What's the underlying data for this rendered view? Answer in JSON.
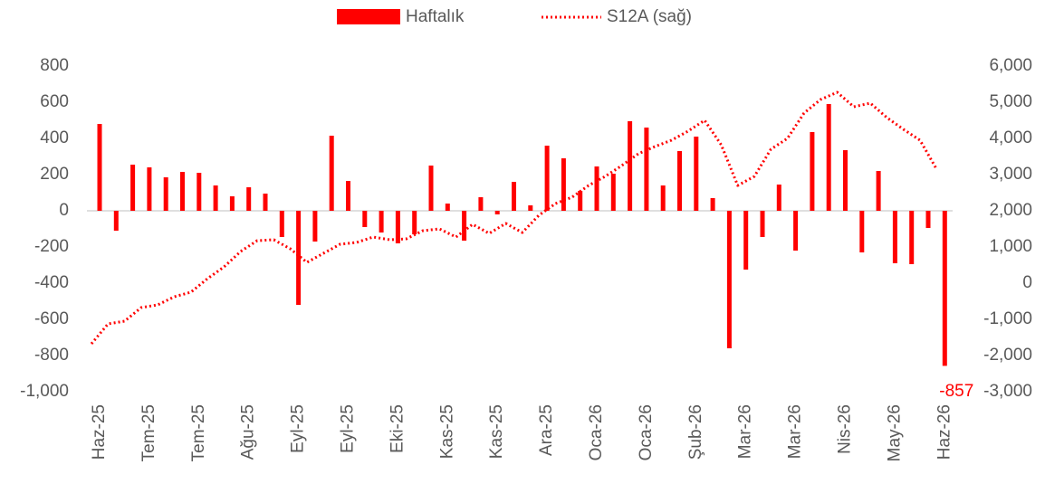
{
  "chart_data": {
    "type": "bar-line",
    "categories": [
      "Haz-25",
      null,
      null,
      "Tem-25",
      null,
      null,
      "Tem-25",
      null,
      null,
      "Ağu-25",
      null,
      null,
      "Eyl-25",
      null,
      null,
      "Eyl-25",
      null,
      null,
      "Eki-25",
      null,
      null,
      "Kas-25",
      null,
      null,
      "Kas-25",
      null,
      null,
      "Ara-25",
      null,
      null,
      "Oca-26",
      null,
      null,
      "Oca-26",
      null,
      null,
      "Şub-26",
      null,
      null,
      "Mar-26",
      null,
      null,
      "Mar-26",
      null,
      null,
      "Nis-26",
      null,
      null,
      "May-26",
      null,
      null,
      "Haz-26"
    ],
    "series": [
      {
        "name": "Haftalık",
        "color": "#ff0000",
        "kind": "bar",
        "values": [
          480,
          -110,
          255,
          240,
          185,
          215,
          210,
          140,
          80,
          130,
          95,
          -145,
          -520,
          -170,
          415,
          165,
          -90,
          -120,
          -180,
          -130,
          250,
          40,
          -165,
          75,
          -20,
          160,
          30,
          360,
          290,
          110,
          245,
          205,
          495,
          460,
          140,
          330,
          410,
          70,
          -760,
          -325,
          -145,
          145,
          -220,
          435,
          590,
          335,
          -230,
          220,
          -290,
          -295,
          -95,
          -857
        ]
      },
      {
        "name": "S12A (sağ)",
        "color": "#ff0000",
        "kind": "line",
        "axis": "y2",
        "values": [
          -1675,
          -1125,
          -1050,
          -675,
          -600,
          -375,
          -250,
          125,
          450,
          875,
          1175,
          1200,
          950,
          575,
          825,
          1075,
          1125,
          1275,
          1200,
          1225,
          1450,
          1500,
          1275,
          1625,
          1375,
          1650,
          1400,
          1875,
          2200,
          2375,
          2700,
          2950,
          3250,
          3575,
          3775,
          3950,
          4200,
          4500,
          3825,
          2700,
          2950,
          3700,
          4000,
          4700,
          5075,
          5275,
          4875,
          4975,
          4575,
          4250,
          3950,
          3150
        ]
      }
    ],
    "ylim": [
      -1000,
      800
    ],
    "yticks": [
      {
        "value": -1000,
        "label": "-1,000"
      },
      -800,
      -600,
      -400,
      -200,
      0,
      200,
      400,
      600,
      800
    ],
    "y2lim": [
      -3000,
      6000
    ],
    "y2ticks": [
      {
        "value": -3000,
        "label": "-3,000"
      },
      {
        "value": -2000,
        "label": "-2,000"
      },
      {
        "value": -1000,
        "label": "-1,000"
      },
      0,
      {
        "value": 1000,
        "label": "1,000"
      },
      {
        "value": 2000,
        "label": "2,000"
      },
      {
        "value": 3000,
        "label": "3,000"
      },
      {
        "value": 4000,
        "label": "4,000"
      },
      {
        "value": 5000,
        "label": "5,000"
      },
      {
        "value": 6000,
        "label": "6,000"
      }
    ],
    "legend": "top",
    "grid": false
  }
}
